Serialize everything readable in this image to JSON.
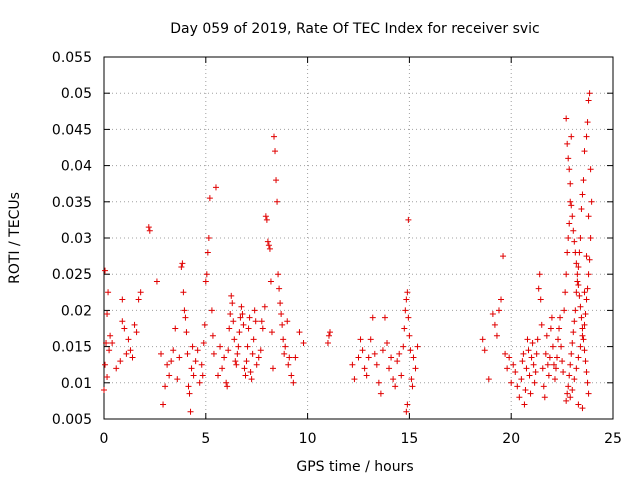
{
  "chart_data": {
    "type": "scatter",
    "title": "Day 059 of 2019, Rate Of TEC Index for receiver svic",
    "xlabel": "GPS time / hours",
    "ylabel": "ROTI / TECUs",
    "xlim": [
      0,
      25
    ],
    "ylim": [
      0.005,
      0.055
    ],
    "xticks": [
      0,
      5,
      10,
      15,
      20,
      25
    ],
    "yticks": [
      0.005,
      0.01,
      0.015,
      0.02,
      0.025,
      0.03,
      0.035,
      0.04,
      0.045,
      0.05,
      0.055
    ],
    "xtick_labels": [
      "0",
      "5",
      "10",
      "15",
      "20",
      "25"
    ],
    "ytick_labels": [
      "0.005",
      "0.01",
      "0.015",
      "0.02",
      "0.025",
      "0.03",
      "0.035",
      "0.04",
      "0.045",
      "0.05",
      "0.055"
    ],
    "grid": true,
    "marker": "+",
    "color": "#e00000",
    "series": [
      {
        "name": "svic",
        "points": [
          [
            0.0,
            0.009
          ],
          [
            0.05,
            0.0125
          ],
          [
            0.1,
            0.0155
          ],
          [
            0.15,
            0.0195
          ],
          [
            0.2,
            0.0225
          ],
          [
            0.05,
            0.0255
          ],
          [
            0.25,
            0.0145
          ],
          [
            0.3,
            0.0165
          ],
          [
            0.15,
            0.0108
          ],
          [
            0.4,
            0.0155
          ],
          [
            0.6,
            0.012
          ],
          [
            0.8,
            0.013
          ],
          [
            0.9,
            0.0185
          ],
          [
            1.0,
            0.0175
          ],
          [
            0.9,
            0.0215
          ],
          [
            1.1,
            0.014
          ],
          [
            1.2,
            0.016
          ],
          [
            1.3,
            0.0145
          ],
          [
            1.4,
            0.0135
          ],
          [
            1.5,
            0.018
          ],
          [
            1.6,
            0.017
          ],
          [
            1.7,
            0.0215
          ],
          [
            1.8,
            0.0225
          ],
          [
            2.2,
            0.0315
          ],
          [
            2.25,
            0.031
          ],
          [
            2.6,
            0.024
          ],
          [
            2.8,
            0.014
          ],
          [
            2.9,
            0.007
          ],
          [
            3.0,
            0.0095
          ],
          [
            3.1,
            0.0125
          ],
          [
            3.2,
            0.011
          ],
          [
            3.3,
            0.013
          ],
          [
            3.4,
            0.0145
          ],
          [
            3.5,
            0.0175
          ],
          [
            3.6,
            0.0105
          ],
          [
            3.7,
            0.0135
          ],
          [
            3.8,
            0.026
          ],
          [
            3.85,
            0.0265
          ],
          [
            3.9,
            0.0225
          ],
          [
            3.95,
            0.02
          ],
          [
            4.0,
            0.019
          ],
          [
            4.05,
            0.017
          ],
          [
            4.1,
            0.014
          ],
          [
            4.15,
            0.0095
          ],
          [
            4.2,
            0.0085
          ],
          [
            4.25,
            0.006
          ],
          [
            4.3,
            0.012
          ],
          [
            4.35,
            0.015
          ],
          [
            4.4,
            0.011
          ],
          [
            4.5,
            0.013
          ],
          [
            4.6,
            0.0145
          ],
          [
            4.7,
            0.01
          ],
          [
            4.8,
            0.0125
          ],
          [
            4.85,
            0.011
          ],
          [
            4.9,
            0.0155
          ],
          [
            4.95,
            0.018
          ],
          [
            5.0,
            0.024
          ],
          [
            5.05,
            0.025
          ],
          [
            5.1,
            0.028
          ],
          [
            5.15,
            0.03
          ],
          [
            5.2,
            0.0355
          ],
          [
            5.3,
            0.02
          ],
          [
            5.35,
            0.0165
          ],
          [
            5.4,
            0.014
          ],
          [
            5.5,
            0.037
          ],
          [
            5.6,
            0.011
          ],
          [
            5.7,
            0.015
          ],
          [
            5.8,
            0.012
          ],
          [
            5.9,
            0.0135
          ],
          [
            6.0,
            0.01
          ],
          [
            6.05,
            0.0095
          ],
          [
            6.1,
            0.0145
          ],
          [
            6.15,
            0.0175
          ],
          [
            6.2,
            0.0195
          ],
          [
            6.25,
            0.022
          ],
          [
            6.3,
            0.021
          ],
          [
            6.35,
            0.0185
          ],
          [
            6.4,
            0.016
          ],
          [
            6.45,
            0.013
          ],
          [
            6.5,
            0.0125
          ],
          [
            6.55,
            0.014
          ],
          [
            6.6,
            0.015
          ],
          [
            6.65,
            0.017
          ],
          [
            6.7,
            0.019
          ],
          [
            6.75,
            0.0205
          ],
          [
            6.8,
            0.0195
          ],
          [
            6.85,
            0.018
          ],
          [
            6.9,
            0.012
          ],
          [
            6.95,
            0.011
          ],
          [
            7.0,
            0.013
          ],
          [
            7.05,
            0.015
          ],
          [
            7.1,
            0.0175
          ],
          [
            7.15,
            0.019
          ],
          [
            7.2,
            0.0115
          ],
          [
            7.25,
            0.0105
          ],
          [
            7.3,
            0.014
          ],
          [
            7.35,
            0.016
          ],
          [
            7.4,
            0.02
          ],
          [
            7.45,
            0.0185
          ],
          [
            7.5,
            0.0125
          ],
          [
            7.6,
            0.0135
          ],
          [
            7.7,
            0.0145
          ],
          [
            7.75,
            0.0185
          ],
          [
            7.8,
            0.0175
          ],
          [
            7.9,
            0.0205
          ],
          [
            7.95,
            0.033
          ],
          [
            8.0,
            0.0325
          ],
          [
            8.05,
            0.0295
          ],
          [
            8.1,
            0.029
          ],
          [
            8.15,
            0.0285
          ],
          [
            8.2,
            0.024
          ],
          [
            8.25,
            0.017
          ],
          [
            8.3,
            0.012
          ],
          [
            8.35,
            0.044
          ],
          [
            8.4,
            0.042
          ],
          [
            8.45,
            0.038
          ],
          [
            8.5,
            0.035
          ],
          [
            8.55,
            0.025
          ],
          [
            8.6,
            0.023
          ],
          [
            8.65,
            0.021
          ],
          [
            8.7,
            0.0195
          ],
          [
            8.75,
            0.018
          ],
          [
            8.8,
            0.016
          ],
          [
            8.85,
            0.014
          ],
          [
            8.9,
            0.015
          ],
          [
            9.0,
            0.0185
          ],
          [
            9.05,
            0.0125
          ],
          [
            9.1,
            0.0135
          ],
          [
            9.2,
            0.011
          ],
          [
            9.3,
            0.01
          ],
          [
            9.4,
            0.0135
          ],
          [
            9.6,
            0.017
          ],
          [
            9.8,
            0.0155
          ],
          [
            11.0,
            0.0155
          ],
          [
            11.05,
            0.0165
          ],
          [
            11.1,
            0.017
          ],
          [
            12.2,
            0.0125
          ],
          [
            12.3,
            0.0105
          ],
          [
            12.5,
            0.0135
          ],
          [
            12.6,
            0.016
          ],
          [
            12.7,
            0.0145
          ],
          [
            12.8,
            0.012
          ],
          [
            12.9,
            0.011
          ],
          [
            13.0,
            0.0135
          ],
          [
            13.1,
            0.016
          ],
          [
            13.2,
            0.019
          ],
          [
            13.3,
            0.014
          ],
          [
            13.4,
            0.0125
          ],
          [
            13.5,
            0.01
          ],
          [
            13.6,
            0.0085
          ],
          [
            13.7,
            0.0145
          ],
          [
            13.8,
            0.019
          ],
          [
            13.9,
            0.0155
          ],
          [
            14.0,
            0.012
          ],
          [
            14.1,
            0.0135
          ],
          [
            14.2,
            0.0105
          ],
          [
            14.3,
            0.0095
          ],
          [
            14.4,
            0.013
          ],
          [
            14.5,
            0.014
          ],
          [
            14.6,
            0.011
          ],
          [
            14.7,
            0.015
          ],
          [
            14.75,
            0.0175
          ],
          [
            14.8,
            0.02
          ],
          [
            14.85,
            0.0215
          ],
          [
            14.9,
            0.0225
          ],
          [
            14.95,
            0.019
          ],
          [
            15.0,
            0.0165
          ],
          [
            15.05,
            0.0145
          ],
          [
            15.1,
            0.0105
          ],
          [
            15.15,
            0.0095
          ],
          [
            15.2,
            0.0135
          ],
          [
            15.3,
            0.012
          ],
          [
            15.4,
            0.015
          ],
          [
            14.95,
            0.0325
          ],
          [
            14.9,
            0.007
          ],
          [
            14.85,
            0.006
          ],
          [
            18.6,
            0.016
          ],
          [
            18.7,
            0.0145
          ],
          [
            18.9,
            0.0105
          ],
          [
            19.1,
            0.0195
          ],
          [
            19.2,
            0.018
          ],
          [
            19.3,
            0.0165
          ],
          [
            19.4,
            0.02
          ],
          [
            19.5,
            0.0215
          ],
          [
            19.6,
            0.0275
          ],
          [
            19.7,
            0.014
          ],
          [
            19.8,
            0.012
          ],
          [
            19.9,
            0.0135
          ],
          [
            20.0,
            0.01
          ],
          [
            20.1,
            0.0125
          ],
          [
            20.2,
            0.0115
          ],
          [
            20.3,
            0.0095
          ],
          [
            20.4,
            0.008
          ],
          [
            20.5,
            0.0105
          ],
          [
            20.55,
            0.013
          ],
          [
            20.6,
            0.014
          ],
          [
            20.65,
            0.007
          ],
          [
            20.7,
            0.009
          ],
          [
            20.75,
            0.012
          ],
          [
            20.8,
            0.016
          ],
          [
            20.85,
            0.0145
          ],
          [
            20.9,
            0.011
          ],
          [
            20.95,
            0.0085
          ],
          [
            21.0,
            0.0135
          ],
          [
            21.05,
            0.0155
          ],
          [
            21.1,
            0.0125
          ],
          [
            21.15,
            0.01
          ],
          [
            21.2,
            0.0115
          ],
          [
            21.25,
            0.014
          ],
          [
            21.3,
            0.016
          ],
          [
            21.35,
            0.023
          ],
          [
            21.4,
            0.025
          ],
          [
            21.45,
            0.0215
          ],
          [
            21.5,
            0.018
          ],
          [
            21.55,
            0.012
          ],
          [
            21.6,
            0.0095
          ],
          [
            21.65,
            0.008
          ],
          [
            21.7,
            0.014
          ],
          [
            21.75,
            0.0165
          ],
          [
            21.8,
            0.0125
          ],
          [
            21.85,
            0.011
          ],
          [
            21.9,
            0.0135
          ],
          [
            21.95,
            0.0175
          ],
          [
            22.0,
            0.019
          ],
          [
            22.05,
            0.015
          ],
          [
            22.1,
            0.0125
          ],
          [
            22.15,
            0.0105
          ],
          [
            22.2,
            0.012
          ],
          [
            22.25,
            0.0135
          ],
          [
            22.3,
            0.016
          ],
          [
            22.35,
            0.0175
          ],
          [
            22.4,
            0.019
          ],
          [
            22.45,
            0.015
          ],
          [
            22.5,
            0.013
          ],
          [
            22.55,
            0.0115
          ],
          [
            22.6,
            0.02
          ],
          [
            22.65,
            0.0225
          ],
          [
            22.7,
            0.025
          ],
          [
            22.75,
            0.028
          ],
          [
            22.8,
            0.03
          ],
          [
            22.85,
            0.032
          ],
          [
            22.9,
            0.035
          ],
          [
            22.95,
            0.044
          ],
          [
            22.7,
            0.0465
          ],
          [
            22.75,
            0.043
          ],
          [
            22.8,
            0.041
          ],
          [
            22.85,
            0.0395
          ],
          [
            22.9,
            0.0375
          ],
          [
            22.95,
            0.0345
          ],
          [
            23.0,
            0.033
          ],
          [
            23.05,
            0.031
          ],
          [
            23.1,
            0.0295
          ],
          [
            23.15,
            0.028
          ],
          [
            23.2,
            0.0265
          ],
          [
            23.25,
            0.025
          ],
          [
            23.3,
            0.0235
          ],
          [
            23.35,
            0.022
          ],
          [
            23.4,
            0.0205
          ],
          [
            23.45,
            0.019
          ],
          [
            23.5,
            0.0175
          ],
          [
            23.55,
            0.016
          ],
          [
            23.6,
            0.0145
          ],
          [
            23.65,
            0.013
          ],
          [
            23.7,
            0.0115
          ],
          [
            23.75,
            0.01
          ],
          [
            23.8,
            0.0085
          ],
          [
            23.85,
            0.05
          ],
          [
            23.8,
            0.049
          ],
          [
            23.75,
            0.046
          ],
          [
            23.7,
            0.044
          ],
          [
            23.6,
            0.042
          ],
          [
            23.55,
            0.038
          ],
          [
            23.5,
            0.036
          ],
          [
            23.45,
            0.034
          ],
          [
            23.4,
            0.03
          ],
          [
            23.35,
            0.028
          ],
          [
            23.3,
            0.026
          ],
          [
            23.25,
            0.024
          ],
          [
            23.2,
            0.0225
          ],
          [
            23.15,
            0.02
          ],
          [
            23.1,
            0.0185
          ],
          [
            23.05,
            0.017
          ],
          [
            23.0,
            0.0155
          ],
          [
            22.95,
            0.014
          ],
          [
            22.9,
            0.0125
          ],
          [
            22.85,
            0.011
          ],
          [
            22.8,
            0.0095
          ],
          [
            22.75,
            0.0085
          ],
          [
            22.7,
            0.0075
          ],
          [
            23.9,
            0.0395
          ],
          [
            23.95,
            0.035
          ],
          [
            23.9,
            0.03
          ],
          [
            23.85,
            0.027
          ],
          [
            23.8,
            0.025
          ],
          [
            23.75,
            0.023
          ],
          [
            23.7,
            0.0215
          ],
          [
            23.65,
            0.0195
          ],
          [
            23.6,
            0.018
          ],
          [
            23.5,
            0.0165
          ],
          [
            23.4,
            0.015
          ],
          [
            23.3,
            0.0135
          ],
          [
            23.2,
            0.012
          ],
          [
            23.1,
            0.0105
          ],
          [
            23.0,
            0.009
          ],
          [
            22.9,
            0.008
          ],
          [
            23.3,
            0.007
          ],
          [
            23.5,
            0.0065
          ],
          [
            23.6,
            0.0225
          ],
          [
            23.7,
            0.0275
          ],
          [
            23.8,
            0.033
          ]
        ]
      }
    ]
  }
}
